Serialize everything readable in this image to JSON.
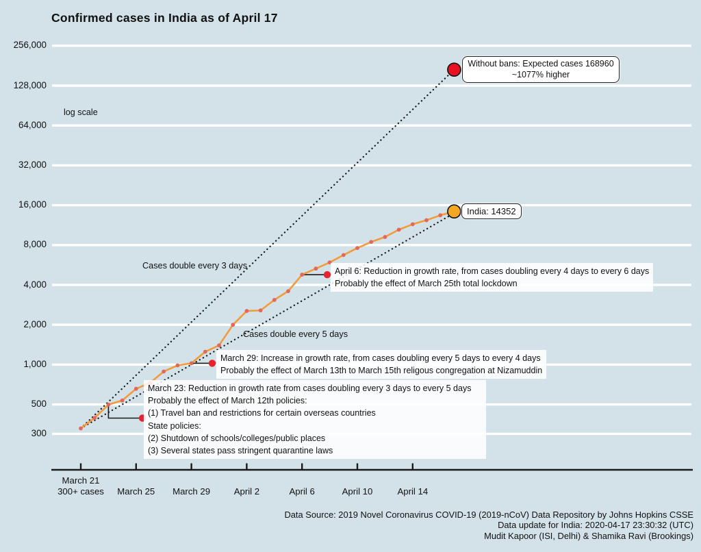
{
  "title": "Confirmed cases in India as of April 17",
  "scale_label": "log scale",
  "chart_data": {
    "type": "line",
    "title": "Confirmed cases in India as of April 17",
    "yscale": "log (base 2 spacing)",
    "grid": "horizontal white gridlines",
    "series_name": "Confirmed cases in India",
    "x": [
      "March 21",
      "March 22",
      "March 23",
      "March 24",
      "March 25",
      "March 26",
      "March 27",
      "March 28",
      "March 29",
      "March 30",
      "March 31",
      "April 1",
      "April 2",
      "April 3",
      "April 4",
      "April 5",
      "April 6",
      "April 7",
      "April 8",
      "April 9",
      "April 10",
      "April 11",
      "April 12",
      "April 13",
      "April 14",
      "April 15",
      "April 16",
      "April 17"
    ],
    "values": [
      330,
      396,
      499,
      536,
      657,
      727,
      887,
      987,
      1024,
      1251,
      1397,
      1998,
      2543,
      2567,
      3082,
      3588,
      4778,
      5311,
      5916,
      6725,
      7598,
      8446,
      9205,
      10453,
      11487,
      12322,
      13430,
      14352
    ],
    "y_tick_labels": [
      "300",
      "500",
      "1,000",
      "2,000",
      "4,000",
      "8,000",
      "16,000",
      "32,000",
      "64,000",
      "128,000",
      "256,000"
    ],
    "y_tick_values": [
      300,
      500,
      1000,
      2000,
      4000,
      8000,
      16000,
      32000,
      64000,
      128000,
      256000
    ],
    "x_ticks": [
      {
        "day": 0,
        "lines": [
          "March 21",
          "300+ cases"
        ]
      },
      {
        "day": 4,
        "lines": [
          "March 25"
        ]
      },
      {
        "day": 8,
        "lines": [
          "March 29"
        ]
      },
      {
        "day": 12,
        "lines": [
          "April 2"
        ]
      },
      {
        "day": 16,
        "lines": [
          "April 6"
        ]
      },
      {
        "day": 20,
        "lines": [
          "April 10"
        ]
      },
      {
        "day": 24,
        "lines": [
          "April 14"
        ]
      }
    ],
    "reference_lines": [
      {
        "label": "Cases double every 3 days",
        "doubling_days": 3,
        "start_value": 330,
        "end_value": 168960
      },
      {
        "label": "Cases double every 5 days",
        "doubling_days": 5,
        "start_value": 330,
        "end_value": 13934
      }
    ]
  },
  "endpoints": {
    "expected": {
      "label_line1": "Without bans: Expected cases 168960",
      "label_line2": "~1077% higher",
      "value": 168960,
      "day": 27
    },
    "india": {
      "label": "India: 14352",
      "value": 14352,
      "day": 27
    }
  },
  "annotations": [
    {
      "id": "april6",
      "anchor_day": 16,
      "anchor_value": 4778,
      "lines": [
        "April 6: Reduction in growth rate, from cases doubling every 4 days to every 6 days",
        "Probably the effect of March 25th total lockdown"
      ]
    },
    {
      "id": "march29",
      "anchor_day": 8,
      "anchor_value": 1024,
      "lines": [
        "March 29: Increase in growth rate, from cases doubling every 5 days to every 4 days",
        "Probably the effect of March 13th to March 15th religous congregation at Nizamuddin"
      ]
    },
    {
      "id": "march23",
      "anchor_day": 2,
      "anchor_value": 499,
      "lines": [
        "March 23: Reduction in growth rate from cases doubling every 3 days to every 5 days",
        "Probably the effect of March 12th policies:",
        "(1) Travel ban and restrictions for certain overseas countries",
        "State policies:",
        "(2) Shutdown of schools/colleges/public places",
        "(3) Several states pass stringent quarantine laws"
      ]
    }
  ],
  "footer": {
    "lines": [
      "Data Source: 2019 Novel Coronavirus COVID-19 (2019-nCoV) Data Repository by Johns Hopkins CSSE",
      "Data update for India: 2020-04-17 23:30:32 (UTC)",
      "Mudit Kapoor (ISI, Delhi) & Shamika Ravi (Brookings)"
    ]
  },
  "colors": {
    "background": "#d3e1e8",
    "gridline": "#ffffff",
    "series_line": "#f29b38",
    "marker": "#e0685c",
    "india_dot": "#f5a623",
    "expected_dot": "#e81123",
    "callout_dot": "#e8232e",
    "reference_line": "#1a1a1a",
    "axis": "#1a1a1a",
    "text": "#111111"
  }
}
